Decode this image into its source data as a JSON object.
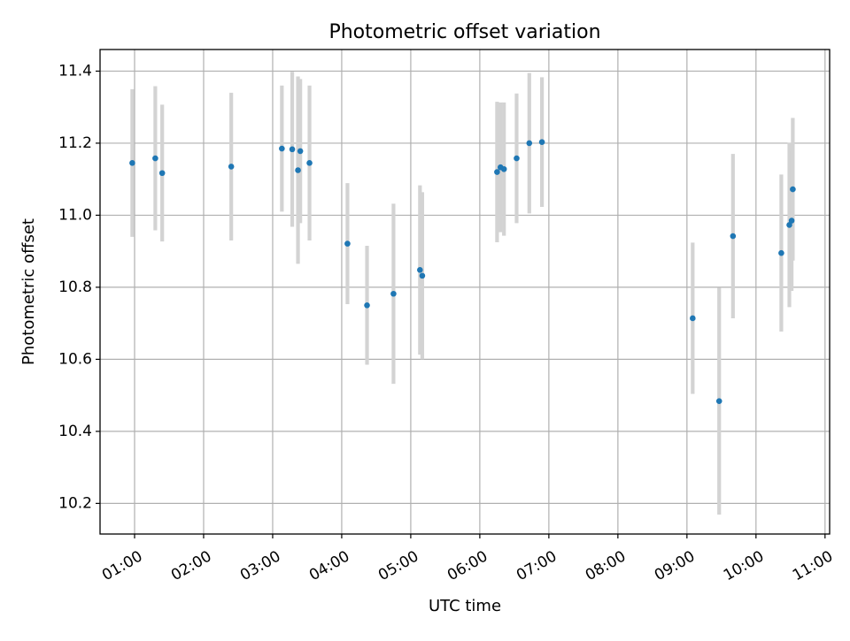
{
  "chart_data": {
    "type": "scatter",
    "title": "Photometric offset variation",
    "xlabel": "UTC time",
    "ylabel": "Photometric offset",
    "x_type": "time",
    "xlim": [
      "00:30",
      "11:04"
    ],
    "ylim": [
      10.115,
      11.46
    ],
    "x_ticks": [
      "01:00",
      "02:00",
      "03:00",
      "04:00",
      "05:00",
      "06:00",
      "07:00",
      "08:00",
      "09:00",
      "10:00",
      "11:00"
    ],
    "y_ticks": [
      10.2,
      10.4,
      10.6,
      10.8,
      11.0,
      11.2,
      11.4
    ],
    "grid": true,
    "marker_color": "#1f77b4",
    "errorbar_color": "#d3d3d3",
    "series": [
      {
        "points": [
          {
            "x": "00:58",
            "y": 11.145,
            "yerr": 0.205
          },
          {
            "x": "01:18",
            "y": 11.158,
            "yerr": 0.2
          },
          {
            "x": "01:24",
            "y": 11.117,
            "yerr": 0.19
          },
          {
            "x": "02:24",
            "y": 11.135,
            "yerr": 0.205
          },
          {
            "x": "03:08",
            "y": 11.185,
            "yerr": 0.175
          },
          {
            "x": "03:17",
            "y": 11.183,
            "yerr": 0.215
          },
          {
            "x": "03:22",
            "y": 11.125,
            "yerr": 0.26
          },
          {
            "x": "03:24",
            "y": 11.178,
            "yerr": 0.2
          },
          {
            "x": "03:32",
            "y": 11.145,
            "yerr": 0.215
          },
          {
            "x": "04:05",
            "y": 10.921,
            "yerr": 0.168
          },
          {
            "x": "04:22",
            "y": 10.75,
            "yerr": 0.165
          },
          {
            "x": "04:45",
            "y": 10.782,
            "yerr": 0.25
          },
          {
            "x": "05:08",
            "y": 10.848,
            "yerr": 0.235
          },
          {
            "x": "05:10",
            "y": 10.832,
            "yerr": 0.232
          },
          {
            "x": "06:15",
            "y": 11.12,
            "yerr": 0.195
          },
          {
            "x": "06:18",
            "y": 11.133,
            "yerr": 0.18
          },
          {
            "x": "06:21",
            "y": 11.128,
            "yerr": 0.185
          },
          {
            "x": "06:32",
            "y": 11.158,
            "yerr": 0.18
          },
          {
            "x": "06:43",
            "y": 11.2,
            "yerr": 0.195
          },
          {
            "x": "06:54",
            "y": 11.203,
            "yerr": 0.18
          },
          {
            "x": "09:05",
            "y": 10.714,
            "yerr": 0.21
          },
          {
            "x": "09:28",
            "y": 10.484,
            "yerr": 0.315
          },
          {
            "x": "09:40",
            "y": 10.942,
            "yerr": 0.228
          },
          {
            "x": "10:22",
            "y": 10.895,
            "yerr": 0.218
          },
          {
            "x": "10:29",
            "y": 10.973,
            "yerr": 0.228
          },
          {
            "x": "10:31",
            "y": 10.985,
            "yerr": 0.195
          },
          {
            "x": "10:32",
            "y": 11.072,
            "yerr": 0.198
          }
        ]
      }
    ]
  }
}
